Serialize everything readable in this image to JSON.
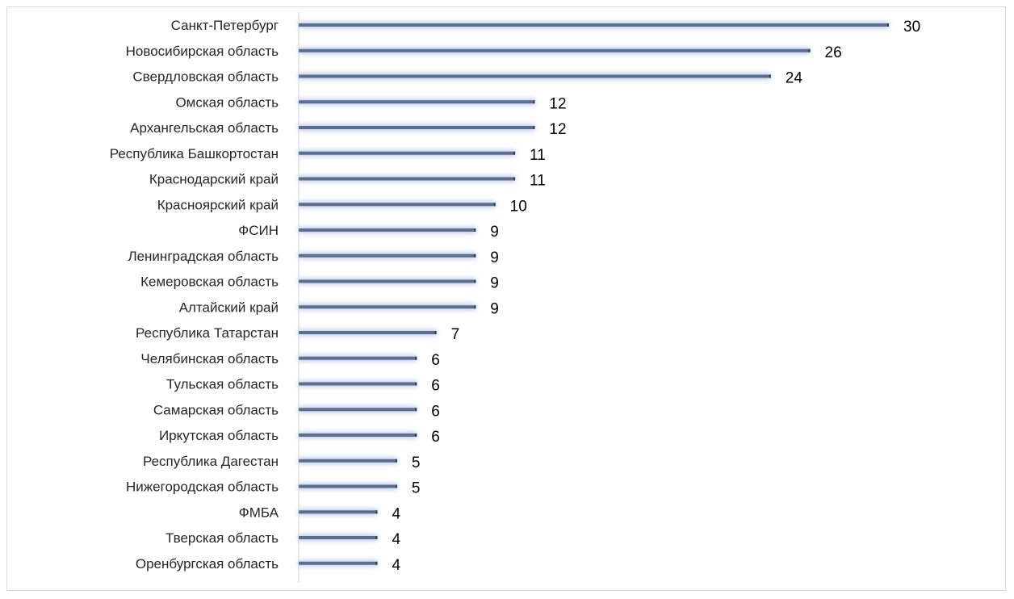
{
  "chart_data": {
    "type": "bar",
    "orientation": "horizontal",
    "title": "",
    "xlabel": "",
    "ylabel": "",
    "grid": false,
    "legend": "none",
    "xlim": [
      0,
      30
    ],
    "categories": [
      "Санкт-Петербург",
      "Новосибирская область",
      "Свердловская область",
      "Омская область",
      "Архангельская область",
      "Республика Башкортостан",
      "Краснодарский край",
      "Красноярский край",
      "ФСИН",
      "Ленинградская область",
      "Кемеровская область",
      "Алтайский край",
      "Республика Татарстан",
      "Челябинская область",
      "Тульская область",
      "Самарская область",
      "Иркутская область",
      "Республика Дагестан",
      "Нижегородская область",
      "ФМБА",
      "Тверская область",
      "Оренбургская область"
    ],
    "values": [
      30,
      26,
      24,
      12,
      12,
      11,
      11,
      10,
      9,
      9,
      9,
      9,
      7,
      6,
      6,
      6,
      6,
      5,
      5,
      4,
      4,
      4
    ],
    "colors": {
      "bar": "#5b6f8f",
      "bar_glow": "#b8c6ea",
      "axis": "#d0d0d0",
      "label": "#262626",
      "value": "#000000"
    }
  }
}
